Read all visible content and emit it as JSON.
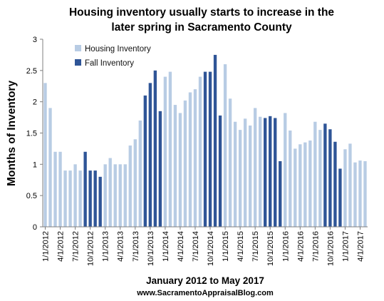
{
  "chart_data": {
    "type": "bar",
    "title": [
      "Housing inventory usually starts to increase in the",
      "later spring in Sacramento County"
    ],
    "xlabel": "January 2012 to May 2017",
    "ylabel": "Months of Inventory",
    "credit": "www.SacramentoAppraisalBlog.com",
    "ylim": [
      0,
      3
    ],
    "yticks": [
      "0",
      "0.5",
      "1",
      "1.5",
      "2",
      "2.5",
      "3"
    ],
    "grid": false,
    "legend_position": "top-left",
    "x_tick_labels": [
      "1/1/2012",
      "4/1/2012",
      "7/1/2012",
      "10/1/2012",
      "1/1/2013",
      "4/1/2013",
      "7/1/2013",
      "10/1/2013",
      "1/1/2014",
      "4/1/2014",
      "7/1/2014",
      "10/1/2014",
      "1/1/2015",
      "4/1/2015",
      "7/1/2015",
      "10/1/2015",
      "1/1/2016",
      "4/1/2016",
      "7/1/2016",
      "10/1/2016",
      "1/1/2017",
      "4/1/2017"
    ],
    "series": [
      {
        "name": "Housing Inventory",
        "color": "#b8cce4"
      },
      {
        "name": "Fall Inventory",
        "color": "#2f5597"
      }
    ],
    "months": 65,
    "values": [
      2.3,
      1.9,
      1.2,
      1.2,
      0.9,
      0.9,
      1.0,
      0.9,
      1.2,
      0.9,
      0.9,
      0.8,
      1.0,
      1.1,
      1.0,
      1.0,
      1.0,
      1.3,
      1.4,
      1.7,
      2.1,
      2.3,
      2.5,
      1.85,
      2.4,
      2.48,
      1.95,
      1.82,
      2.02,
      2.15,
      2.2,
      2.4,
      2.48,
      2.48,
      2.75,
      1.78,
      2.6,
      2.05,
      1.68,
      1.55,
      1.73,
      1.62,
      1.9,
      1.76,
      1.74,
      1.77,
      1.74,
      1.05,
      1.82,
      1.54,
      1.25,
      1.32,
      1.35,
      1.38,
      1.68,
      1.55,
      1.65,
      1.56,
      1.36,
      0.93,
      1.24,
      1.33,
      1.03,
      1.06,
      1.05
    ],
    "fall_index": [
      8,
      9,
      10,
      11,
      20,
      21,
      22,
      23,
      32,
      33,
      34,
      35,
      44,
      45,
      46,
      47,
      56,
      57,
      58,
      59
    ]
  }
}
